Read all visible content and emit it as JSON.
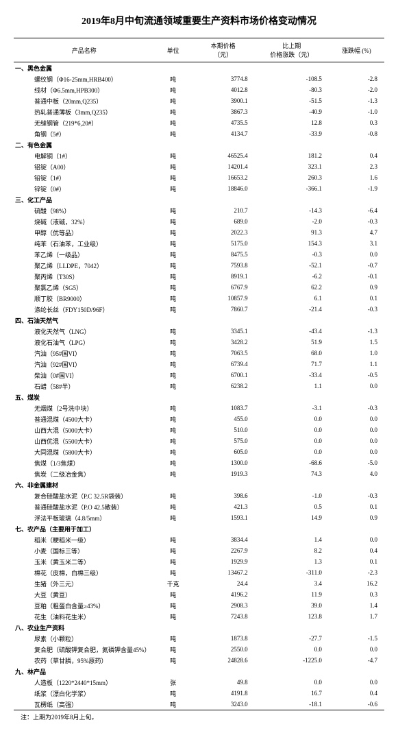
{
  "title": "2019年8月中旬流通领域重要生产资料市场价格变动情况",
  "headers": {
    "name": "产品名称",
    "unit": "单位",
    "price": "本期价格\n（元）",
    "change": "比上期\n价格涨跌（元）",
    "pct": "涨跌幅 (%)"
  },
  "sections": [
    {
      "title": "一、黑色金属",
      "rows": [
        {
          "n": "螺纹钢（Φ16-25mm,HRB400）",
          "u": "吨",
          "p": "3774.8",
          "c": "-108.5",
          "r": "-2.8"
        },
        {
          "n": "线材（Φ6.5mm,HPB300）",
          "u": "吨",
          "p": "4012.8",
          "c": "-80.3",
          "r": "-2.0"
        },
        {
          "n": "普通中板（20mm,Q235）",
          "u": "吨",
          "p": "3900.1",
          "c": "-51.5",
          "r": "-1.3"
        },
        {
          "n": "热轧普通薄板（3mm,Q235）",
          "u": "吨",
          "p": "3867.3",
          "c": "-40.9",
          "r": "-1.0"
        },
        {
          "n": "无缝钢管（219*6,20#）",
          "u": "吨",
          "p": "4735.5",
          "c": "12.8",
          "r": "0.3"
        },
        {
          "n": "角钢（5#）",
          "u": "吨",
          "p": "4134.7",
          "c": "-33.9",
          "r": "-0.8"
        }
      ]
    },
    {
      "title": "二、有色金属",
      "rows": [
        {
          "n": "电解铜（1#）",
          "u": "吨",
          "p": "46525.4",
          "c": "181.2",
          "r": "0.4"
        },
        {
          "n": "铝锭（A00）",
          "u": "吨",
          "p": "14201.4",
          "c": "323.1",
          "r": "2.3"
        },
        {
          "n": "铅锭（1#）",
          "u": "吨",
          "p": "16653.2",
          "c": "260.3",
          "r": "1.6"
        },
        {
          "n": "锌锭（0#）",
          "u": "吨",
          "p": "18846.0",
          "c": "-366.1",
          "r": "-1.9"
        }
      ]
    },
    {
      "title": "三、化工产品",
      "rows": [
        {
          "n": "硫酸（98%）",
          "u": "吨",
          "p": "210.7",
          "c": "-14.3",
          "r": "-6.4"
        },
        {
          "n": "烧碱（液碱，32%）",
          "u": "吨",
          "p": "689.0",
          "c": "-2.0",
          "r": "-0.3"
        },
        {
          "n": "甲醇（优等品）",
          "u": "吨",
          "p": "2022.3",
          "c": "91.3",
          "r": "4.7"
        },
        {
          "n": "纯苯（石油苯，工业级）",
          "u": "吨",
          "p": "5175.0",
          "c": "154.3",
          "r": "3.1"
        },
        {
          "n": "苯乙烯（一级品）",
          "u": "吨",
          "p": "8475.5",
          "c": "-0.3",
          "r": "0.0"
        },
        {
          "n": "聚乙烯（LLDPE，7042）",
          "u": "吨",
          "p": "7593.8",
          "c": "-52.1",
          "r": "-0.7"
        },
        {
          "n": "聚丙烯（T30S）",
          "u": "吨",
          "p": "8919.1",
          "c": "-6.2",
          "r": "-0.1"
        },
        {
          "n": "聚氯乙烯（SG5）",
          "u": "吨",
          "p": "6767.9",
          "c": "62.2",
          "r": "0.9"
        },
        {
          "n": "顺丁胶（BR9000）",
          "u": "吨",
          "p": "10857.9",
          "c": "6.1",
          "r": "0.1"
        },
        {
          "n": "涤纶长丝（FDY150D/96F）",
          "u": "吨",
          "p": "7860.7",
          "c": "-21.4",
          "r": "-0.3"
        }
      ]
    },
    {
      "title": "四、石油天然气",
      "rows": [
        {
          "n": "液化天然气（LNG）",
          "u": "吨",
          "p": "3345.1",
          "c": "-43.4",
          "r": "-1.3"
        },
        {
          "n": "液化石油气（LPG）",
          "u": "吨",
          "p": "3428.2",
          "c": "51.9",
          "r": "1.5"
        },
        {
          "n": "汽油（95#国VI）",
          "u": "吨",
          "p": "7063.5",
          "c": "68.0",
          "r": "1.0"
        },
        {
          "n": "汽油（92#国VI）",
          "u": "吨",
          "p": "6739.4",
          "c": "71.7",
          "r": "1.1"
        },
        {
          "n": "柴油（0#国VI）",
          "u": "吨",
          "p": "6700.1",
          "c": "-33.4",
          "r": "-0.5"
        },
        {
          "n": "石蜡（58#半）",
          "u": "吨",
          "p": "6238.2",
          "c": "1.1",
          "r": "0.0"
        }
      ]
    },
    {
      "title": "五、煤炭",
      "rows": [
        {
          "n": "无烟煤（2号洗中块）",
          "u": "吨",
          "p": "1083.7",
          "c": "-3.1",
          "r": "-0.3"
        },
        {
          "n": "普通混煤（4500大卡）",
          "u": "吨",
          "p": "455.0",
          "c": "0.0",
          "r": "0.0"
        },
        {
          "n": "山西大混（5000大卡）",
          "u": "吨",
          "p": "510.0",
          "c": "0.0",
          "r": "0.0"
        },
        {
          "n": "山西优混（5500大卡）",
          "u": "吨",
          "p": "575.0",
          "c": "0.0",
          "r": "0.0"
        },
        {
          "n": "大同混煤（5800大卡）",
          "u": "吨",
          "p": "605.0",
          "c": "0.0",
          "r": "0.0"
        },
        {
          "n": "焦煤（1/3焦煤）",
          "u": "吨",
          "p": "1300.0",
          "c": "-68.6",
          "r": "-5.0"
        },
        {
          "n": "焦炭（二级冶金焦）",
          "u": "吨",
          "p": "1919.3",
          "c": "74.3",
          "r": "4.0"
        }
      ]
    },
    {
      "title": "六、非金属建材",
      "rows": [
        {
          "n": "复合硅酸盐水泥（P.C 32.5R袋装）",
          "u": "吨",
          "p": "398.6",
          "c": "-1.0",
          "r": "-0.3"
        },
        {
          "n": "普通硅酸盐水泥（P.O 42.5散装）",
          "u": "吨",
          "p": "421.3",
          "c": "0.5",
          "r": "0.1"
        },
        {
          "n": "浮法平板玻璃（4.8/5mm）",
          "u": "吨",
          "p": "1593.1",
          "c": "14.9",
          "r": "0.9"
        }
      ]
    },
    {
      "title": "七、农产品（主要用于加工）",
      "rows": [
        {
          "n": "稻米（粳稻米一级）",
          "u": "吨",
          "p": "3834.4",
          "c": "1.4",
          "r": "0.0"
        },
        {
          "n": "小麦（国标三等）",
          "u": "吨",
          "p": "2267.9",
          "c": "8.2",
          "r": "0.4"
        },
        {
          "n": "玉米（黄玉米二等）",
          "u": "吨",
          "p": "1929.9",
          "c": "1.3",
          "r": "0.1"
        },
        {
          "n": "棉花（皮棉，白棉三级）",
          "u": "吨",
          "p": "13467.2",
          "c": "-311.0",
          "r": "-2.3"
        },
        {
          "n": "生猪（外三元）",
          "u": "千克",
          "p": "24.4",
          "c": "3.4",
          "r": "16.2"
        },
        {
          "n": "大豆（黄豆）",
          "u": "吨",
          "p": "4196.2",
          "c": "11.9",
          "r": "0.3"
        },
        {
          "n": "豆粕（粗蛋白含量≥43%）",
          "u": "吨",
          "p": "2908.3",
          "c": "39.0",
          "r": "1.4"
        },
        {
          "n": "花生（油料花生米）",
          "u": "吨",
          "p": "7243.8",
          "c": "123.8",
          "r": "1.7"
        }
      ]
    },
    {
      "title": "八、农业生产资料",
      "rows": [
        {
          "n": "尿素（小颗粒）",
          "u": "吨",
          "p": "1873.8",
          "c": "-27.7",
          "r": "-1.5"
        },
        {
          "n": "复合肥（硫酸钾复合肥，氮磷钾含量45%）",
          "u": "吨",
          "p": "2550.0",
          "c": "0.0",
          "r": "0.0"
        },
        {
          "n": "农药（草甘膦，95%原药）",
          "u": "吨",
          "p": "24828.6",
          "c": "-1225.0",
          "r": "-4.7"
        }
      ]
    },
    {
      "title": "九、林产品",
      "rows": [
        {
          "n": "人造板（1220*2440*15mm）",
          "u": "张",
          "p": "49.8",
          "c": "0.0",
          "r": "0.0"
        },
        {
          "n": "纸浆（漂白化学浆）",
          "u": "吨",
          "p": "4191.8",
          "c": "16.7",
          "r": "0.4"
        },
        {
          "n": "瓦楞纸（高强）",
          "u": "吨",
          "p": "3243.0",
          "c": "-18.1",
          "r": "-0.6"
        }
      ]
    }
  ],
  "note": "注：上期为2019年8月上旬。"
}
